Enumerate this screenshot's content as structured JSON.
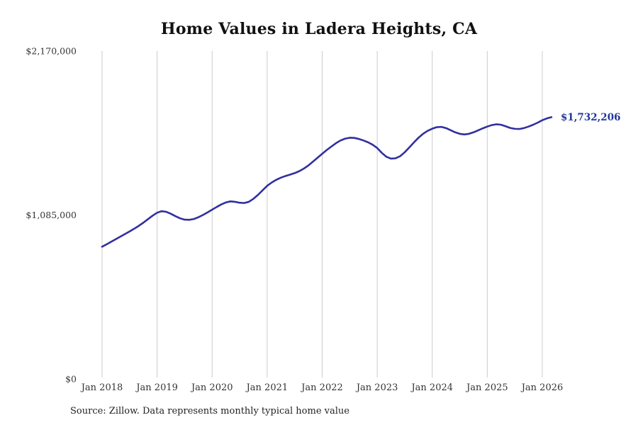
{
  "page": {
    "title": "Home Values in Ladera Heights, CA",
    "source_note": "Source: Zillow. Data represents monthly typical home value"
  },
  "colors": {
    "line": "#322fa0",
    "end_label": "#22379c",
    "grid": "#cccccc",
    "tick_text": "#333333"
  },
  "chart_data": {
    "type": "line",
    "title": "Home Values in Ladera Heights, CA",
    "x_tick_labels": [
      "Jan 2018",
      "Jan 2019",
      "Jan 2020",
      "Jan 2021",
      "Jan 2022",
      "Jan 2023",
      "Jan 2024",
      "Jan 2025",
      "Jan 2026"
    ],
    "y_tick_labels": [
      "$0",
      "$1,085,000",
      "$2,170,000"
    ],
    "y_ticks": [
      0,
      1085000,
      2170000
    ],
    "ylim": [
      0,
      2170000
    ],
    "grid": "vertical-only",
    "legend": "none",
    "end_label": "$1,732,206",
    "series": [
      {
        "name": "Monthly typical home value",
        "unit": "USD",
        "monthly_from": "Jan 2018",
        "monthly_to": "Mar 2026",
        "values": [
          875000,
          891000,
          908000,
          925000,
          942000,
          959000,
          976000,
          994000,
          1013000,
          1034000,
          1057000,
          1080000,
          1100000,
          1110000,
          1106000,
          1093000,
          1077000,
          1063000,
          1054000,
          1053000,
          1058000,
          1070000,
          1085000,
          1102000,
          1120000,
          1138000,
          1155000,
          1168000,
          1175000,
          1172000,
          1166000,
          1164000,
          1172000,
          1192000,
          1218000,
          1248000,
          1278000,
          1300000,
          1318000,
          1332000,
          1343000,
          1352000,
          1362000,
          1375000,
          1392000,
          1413000,
          1438000,
          1464000,
          1490000,
          1515000,
          1538000,
          1560000,
          1578000,
          1590000,
          1596000,
          1595000,
          1588000,
          1578000,
          1566000,
          1550000,
          1528000,
          1496000,
          1470000,
          1458000,
          1460000,
          1474000,
          1500000,
          1532000,
          1565000,
          1596000,
          1622000,
          1642000,
          1656000,
          1666000,
          1668000,
          1660000,
          1646000,
          1632000,
          1622000,
          1618000,
          1622000,
          1632000,
          1645000,
          1658000,
          1670000,
          1680000,
          1685000,
          1682000,
          1672000,
          1661000,
          1655000,
          1654000,
          1660000,
          1670000,
          1682000,
          1696000,
          1712000,
          1724000,
          1732206
        ]
      }
    ]
  }
}
